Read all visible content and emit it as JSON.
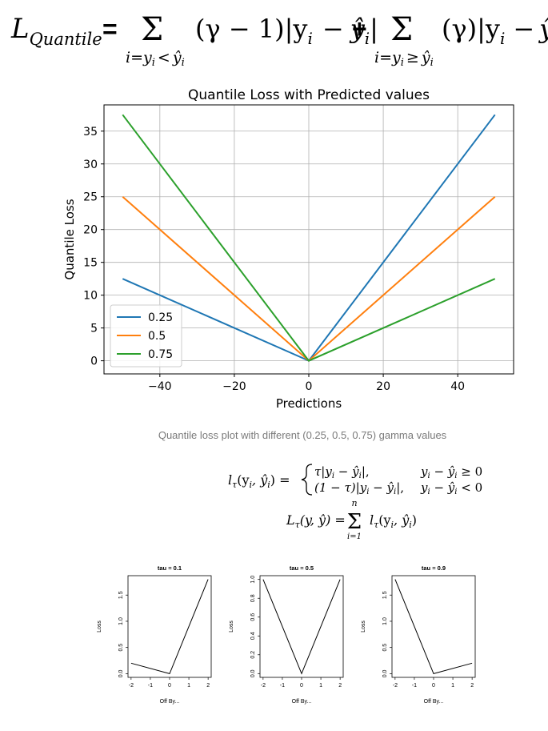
{
  "formula_top": {
    "lhs": "L",
    "lhs_sub": "Quantile",
    "eq": "=",
    "sum": "Σ",
    "term1": "(γ − 1)|y",
    "term1_sub": "i",
    "minus": "−",
    "yhat": "ŷ",
    "yhat_sub": "i",
    "bar": "|",
    "plus": "+",
    "term2": "(γ)|y",
    "term2_sub": "i",
    "under1": "i=y",
    "under1_sub": "i",
    "under1_rel": "<",
    "under1_yhat": "ŷ",
    "under1_yhat_sub": "i",
    "under2": "i=y",
    "under2_sub": "i",
    "under2_rel": "≥",
    "under2_yhat": "ŷ",
    "under2_yhat_sub": "i"
  },
  "caption": "Quantile loss plot with different (0.25, 0.5, 0.75) gamma values",
  "formula_mid": {
    "lhs": "l",
    "lhs_sub": "τ",
    "lhs_args": "(y",
    "lhs_args_sub": "i",
    "lhs_comma": ", ŷ",
    "lhs_comma_sub": "i",
    "lhs_close": ") =",
    "case1_expr": "τ|y",
    "case1_expr_sub": "i",
    "case1_mid": " − ŷ",
    "case1_mid_sub": "i",
    "case1_end": "|,",
    "case1_cond": "y",
    "case1_cond_sub": "i",
    "case1_cond_mid": " − ŷ",
    "case1_cond_mid_sub": "i",
    "case1_cond_end": " ≥ 0",
    "case2_expr": "(1 − τ)|y",
    "case2_expr_sub": "i",
    "case2_mid": " − ŷ",
    "case2_mid_sub": "i",
    "case2_end": "|,",
    "case2_cond": "y",
    "case2_cond_sub": "i",
    "case2_cond_mid": " − ŷ",
    "case2_cond_mid_sub": "i",
    "case2_cond_end": " < 0",
    "sum_lhs": "L",
    "sum_lhs_sub": "τ",
    "sum_lhs_args": "(y, ŷ) =",
    "sum_sym": "Σ",
    "sum_top": "n",
    "sum_bottom": "i=1",
    "sum_term": "l",
    "sum_term_sub": "τ",
    "sum_term_args": "(y",
    "sum_term_args_sub": "i",
    "sum_term_comma": ", ŷ",
    "sum_term_comma_sub": "i",
    "sum_term_close": ")"
  },
  "chart_data": [
    {
      "type": "line",
      "title": "Quantile Loss with Predicted values",
      "xlabel": "Predictions",
      "ylabel": "Quantile Loss",
      "xlim": [
        -55,
        55
      ],
      "ylim": [
        -2,
        39
      ],
      "xticks": [
        -40,
        -20,
        0,
        20,
        40
      ],
      "yticks": [
        0,
        5,
        10,
        15,
        20,
        25,
        30,
        35
      ],
      "grid": true,
      "legend_position": "lower-left",
      "series": [
        {
          "name": "0.25",
          "color": "#1f77b4",
          "x": [
            -50,
            0,
            50
          ],
          "y": [
            12.5,
            0,
            37.5
          ]
        },
        {
          "name": "0.5",
          "color": "#ff7f0e",
          "x": [
            -50,
            0,
            50
          ],
          "y": [
            25,
            0,
            25
          ]
        },
        {
          "name": "0.75",
          "color": "#2ca02c",
          "x": [
            -50,
            0,
            50
          ],
          "y": [
            37.5,
            0,
            12.5
          ]
        }
      ]
    },
    {
      "type": "line",
      "title": "tau = 0.1",
      "xlabel": "Off By...",
      "ylabel": "Loss",
      "xlim": [
        -2.16,
        2.16
      ],
      "ylim": [
        -0.07,
        1.87
      ],
      "xticks": [
        -2,
        -1,
        0,
        1,
        2
      ],
      "yticks": [
        0.0,
        0.5,
        1.0,
        1.5
      ],
      "grid": false,
      "series": [
        {
          "x": [
            -2,
            0,
            2
          ],
          "y": [
            0.2,
            0,
            1.8
          ],
          "color": "#000000"
        }
      ]
    },
    {
      "type": "line",
      "title": "tau = 0.5",
      "xlabel": "Off By...",
      "ylabel": "Loss",
      "xlim": [
        -2.16,
        2.16
      ],
      "ylim": [
        -0.04,
        1.04
      ],
      "xticks": [
        -2,
        -1,
        0,
        1,
        2
      ],
      "yticks": [
        0.0,
        0.2,
        0.4,
        0.6,
        0.8,
        1.0
      ],
      "grid": false,
      "series": [
        {
          "x": [
            -2,
            0,
            2
          ],
          "y": [
            1.0,
            0,
            1.0
          ],
          "color": "#000000"
        }
      ]
    },
    {
      "type": "line",
      "title": "tau = 0.9",
      "xlabel": "Off By...",
      "ylabel": "Loss",
      "xlim": [
        -2.16,
        2.16
      ],
      "ylim": [
        -0.07,
        1.87
      ],
      "xticks": [
        -2,
        -1,
        0,
        1,
        2
      ],
      "yticks": [
        0.0,
        0.5,
        1.0,
        1.5
      ],
      "grid": false,
      "series": [
        {
          "x": [
            -2,
            0,
            2
          ],
          "y": [
            1.8,
            0,
            0.2
          ],
          "color": "#000000"
        }
      ]
    }
  ]
}
